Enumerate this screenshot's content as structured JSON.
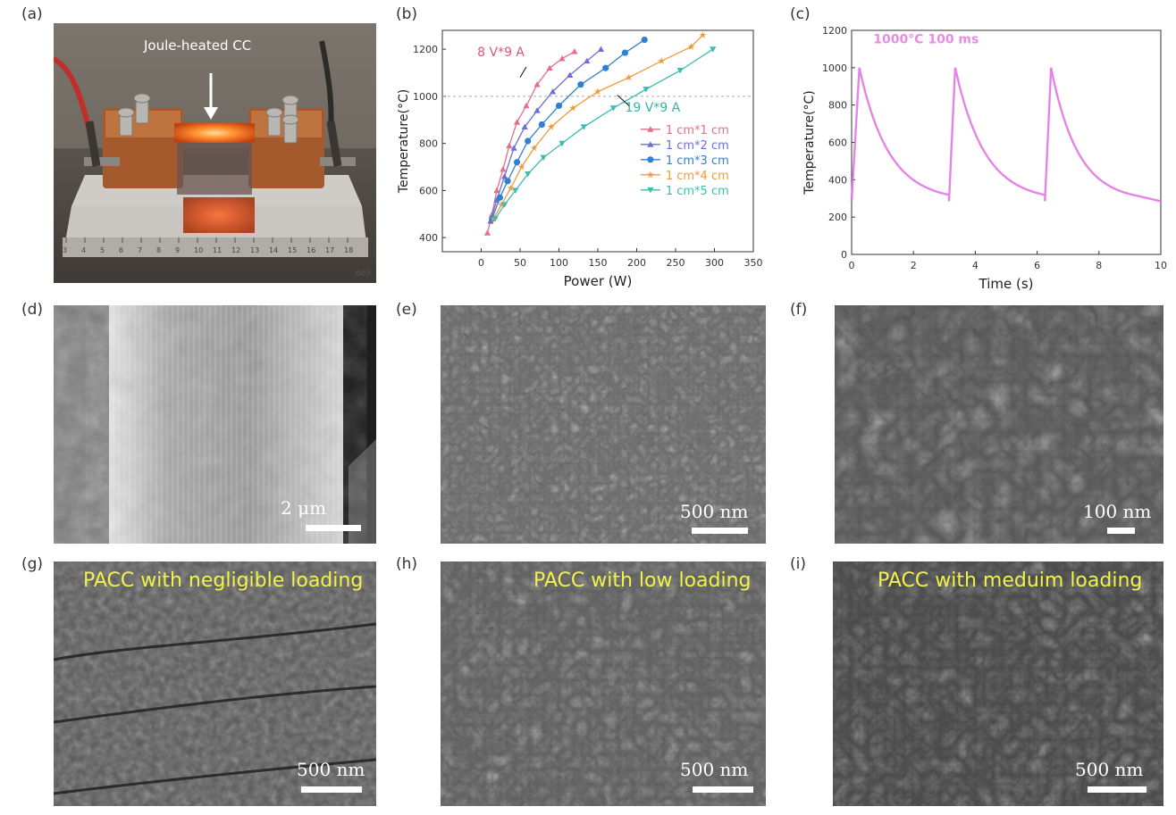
{
  "panels": {
    "a": {
      "label": "(a)",
      "annotation": "Joule-heated CC",
      "ruler_numbers": [
        "3",
        "4",
        "5",
        "6",
        "7",
        "8",
        "9",
        "10",
        "11",
        "12",
        "13",
        "14",
        "15",
        "16",
        "17",
        "18"
      ],
      "brand": "deli"
    },
    "b": {
      "label": "(b)"
    },
    "c": {
      "label": "(c)"
    },
    "d": {
      "label": "(d)",
      "scale": "2 μm"
    },
    "e": {
      "label": "(e)",
      "scale": "500 nm"
    },
    "f": {
      "label": "(f)",
      "scale": "100 nm"
    },
    "g": {
      "label": "(g)",
      "caption": "PACC with negligible loading",
      "scale": "500 nm"
    },
    "h": {
      "label": "(h)",
      "caption": "PACC with low loading",
      "scale": "500 nm"
    },
    "i": {
      "label": "(i)",
      "caption": "PACC with meduim loading",
      "scale": "500 nm"
    }
  },
  "chart_data": [
    {
      "type": "line",
      "xlabel": "Power (W)",
      "ylabel": "Temperature(°C)",
      "xlim": [
        -50,
        350
      ],
      "ylim": [
        340,
        1280
      ],
      "xticks": [
        0,
        50,
        100,
        150,
        200,
        250,
        300,
        350
      ],
      "yticks": [
        400,
        600,
        800,
        1000,
        1200
      ],
      "reference_line": 1000,
      "annotations": [
        "8 V*9 A",
        "19 V*9 A"
      ],
      "legend_position": "right",
      "series": [
        {
          "name": "1 cm*1 cm",
          "color": "#e36f8c",
          "marker": "triangle-up",
          "x": [
            8,
            14,
            20,
            28,
            36,
            46,
            58,
            72,
            88,
            104,
            120
          ],
          "y": [
            420,
            500,
            600,
            690,
            790,
            890,
            960,
            1050,
            1120,
            1160,
            1190
          ]
        },
        {
          "name": "1 cm*2 cm",
          "color": "#6d6fd6",
          "marker": "triangle-up",
          "x": [
            12,
            20,
            30,
            42,
            56,
            72,
            92,
            114,
            136,
            154
          ],
          "y": [
            470,
            560,
            660,
            780,
            870,
            940,
            1020,
            1090,
            1150,
            1200
          ]
        },
        {
          "name": "1 cm*3 cm",
          "color": "#2f7fd2",
          "marker": "circle",
          "x": [
            14,
            24,
            34,
            46,
            60,
            78,
            100,
            128,
            160,
            185,
            210
          ],
          "y": [
            480,
            570,
            640,
            720,
            810,
            880,
            960,
            1050,
            1120,
            1185,
            1240
          ]
        },
        {
          "name": "1 cm*4 cm",
          "color": "#f09a3a",
          "marker": "star",
          "x": [
            16,
            26,
            38,
            52,
            68,
            90,
            118,
            150,
            190,
            232,
            270,
            285
          ],
          "y": [
            480,
            540,
            610,
            700,
            780,
            870,
            950,
            1020,
            1080,
            1150,
            1210,
            1260
          ]
        },
        {
          "name": "1 cm*5 cm",
          "color": "#3dbbb2",
          "marker": "triangle-down",
          "x": [
            18,
            30,
            44,
            60,
            80,
            104,
            132,
            170,
            212,
            256,
            298
          ],
          "y": [
            480,
            540,
            600,
            670,
            740,
            800,
            870,
            950,
            1030,
            1110,
            1200
          ]
        }
      ]
    },
    {
      "type": "line",
      "xlabel": "Time (s)",
      "ylabel": "Temperature(°C)",
      "title": "1000°C  100 ms",
      "xlim": [
        0,
        10
      ],
      "ylim": [
        0,
        1200
      ],
      "xticks": [
        0,
        2,
        4,
        6,
        8,
        10
      ],
      "yticks": [
        0,
        200,
        400,
        600,
        800,
        1000,
        1200
      ],
      "series": [
        {
          "name": "",
          "color": "#e06ee3",
          "pulses": [
            {
              "start": 0.0,
              "peak_time": 0.25,
              "end": 3.15
            },
            {
              "start": 3.15,
              "peak_time": 3.35,
              "end": 6.25
            },
            {
              "start": 6.25,
              "peak_time": 6.45,
              "end": 9.1
            }
          ],
          "peak": 1000,
          "base": 285,
          "hold_until": 10
        }
      ]
    }
  ]
}
